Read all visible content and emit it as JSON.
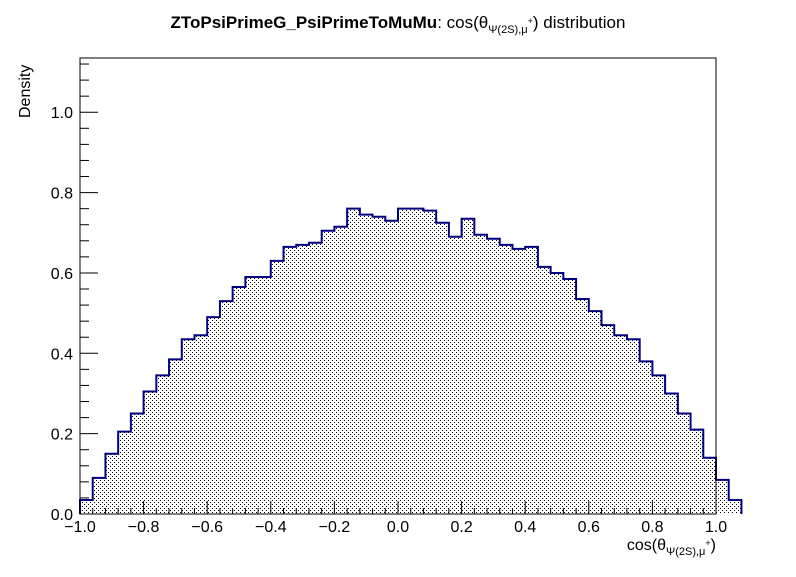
{
  "chart_data": {
    "type": "histogram",
    "title": {
      "bold": "ZToPsiPrimeG_PsiPrimeToMuMu",
      "rest_prefix": ": cos(θ",
      "rest_sub": "Ψ(2S),μ",
      "rest_sup": "+",
      "rest_suffix": ") distribution"
    },
    "xlabel": {
      "prefix": "cos(θ",
      "sub": "Ψ(2S),μ",
      "sup": "+",
      "suffix": ")"
    },
    "ylabel": "Density",
    "xlim": [
      -1.0,
      1.0
    ],
    "ylim": [
      0.0,
      1.135
    ],
    "x_ticks": [
      "−1.0",
      "−0.8",
      "−0.6",
      "−0.4",
      "−0.2",
      "0.0",
      "0.2",
      "0.4",
      "0.6",
      "0.8",
      "1.0"
    ],
    "y_ticks": [
      "0.0",
      "0.2",
      "0.4",
      "0.6",
      "0.8",
      "1.0"
    ],
    "bin_width": 0.04,
    "bin_edges_start": -1.0,
    "values": [
      0.035,
      0.09,
      0.15,
      0.205,
      0.25,
      0.305,
      0.345,
      0.385,
      0.435,
      0.445,
      0.49,
      0.53,
      0.565,
      0.59,
      0.59,
      0.63,
      0.665,
      0.67,
      0.675,
      0.705,
      0.715,
      0.76,
      0.745,
      0.74,
      0.73,
      0.76,
      0.76,
      0.755,
      0.725,
      0.69,
      0.735,
      0.695,
      0.685,
      0.67,
      0.66,
      0.665,
      0.615,
      0.6,
      0.585,
      0.535,
      0.505,
      0.47,
      0.445,
      0.435,
      0.38,
      0.345,
      0.3,
      0.25,
      0.21,
      0.14,
      0.085,
      0.035
    ],
    "line_color": "#000080",
    "fill_pattern_color": "#000000",
    "grid": false,
    "legend": "none"
  }
}
